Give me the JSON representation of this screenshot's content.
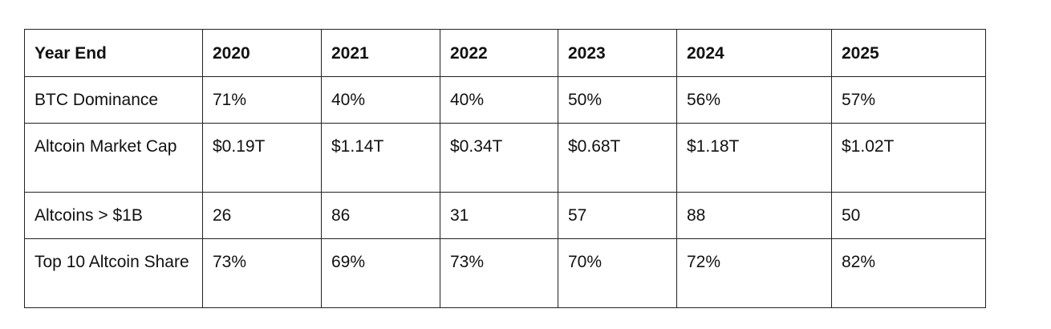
{
  "table": {
    "header": [
      "Year End",
      "2020",
      "2021",
      "2022",
      "2023",
      "2024",
      "2025"
    ],
    "rows": [
      [
        "BTC Dominance",
        "71%",
        "40%",
        "40%",
        "50%",
        "56%",
        "57%"
      ],
      [
        "Altcoin Market Cap",
        "$0.19T",
        "$1.14T",
        "$0.34T",
        "$0.68T",
        "$1.18T",
        "$1.02T"
      ],
      [
        "Altcoins > $1B",
        "26",
        "86",
        "31",
        "57",
        "88",
        "50"
      ],
      [
        "Top 10 Altcoin Share",
        "73%",
        "69%",
        "73%",
        "70%",
        "72%",
        "82%"
      ]
    ]
  }
}
